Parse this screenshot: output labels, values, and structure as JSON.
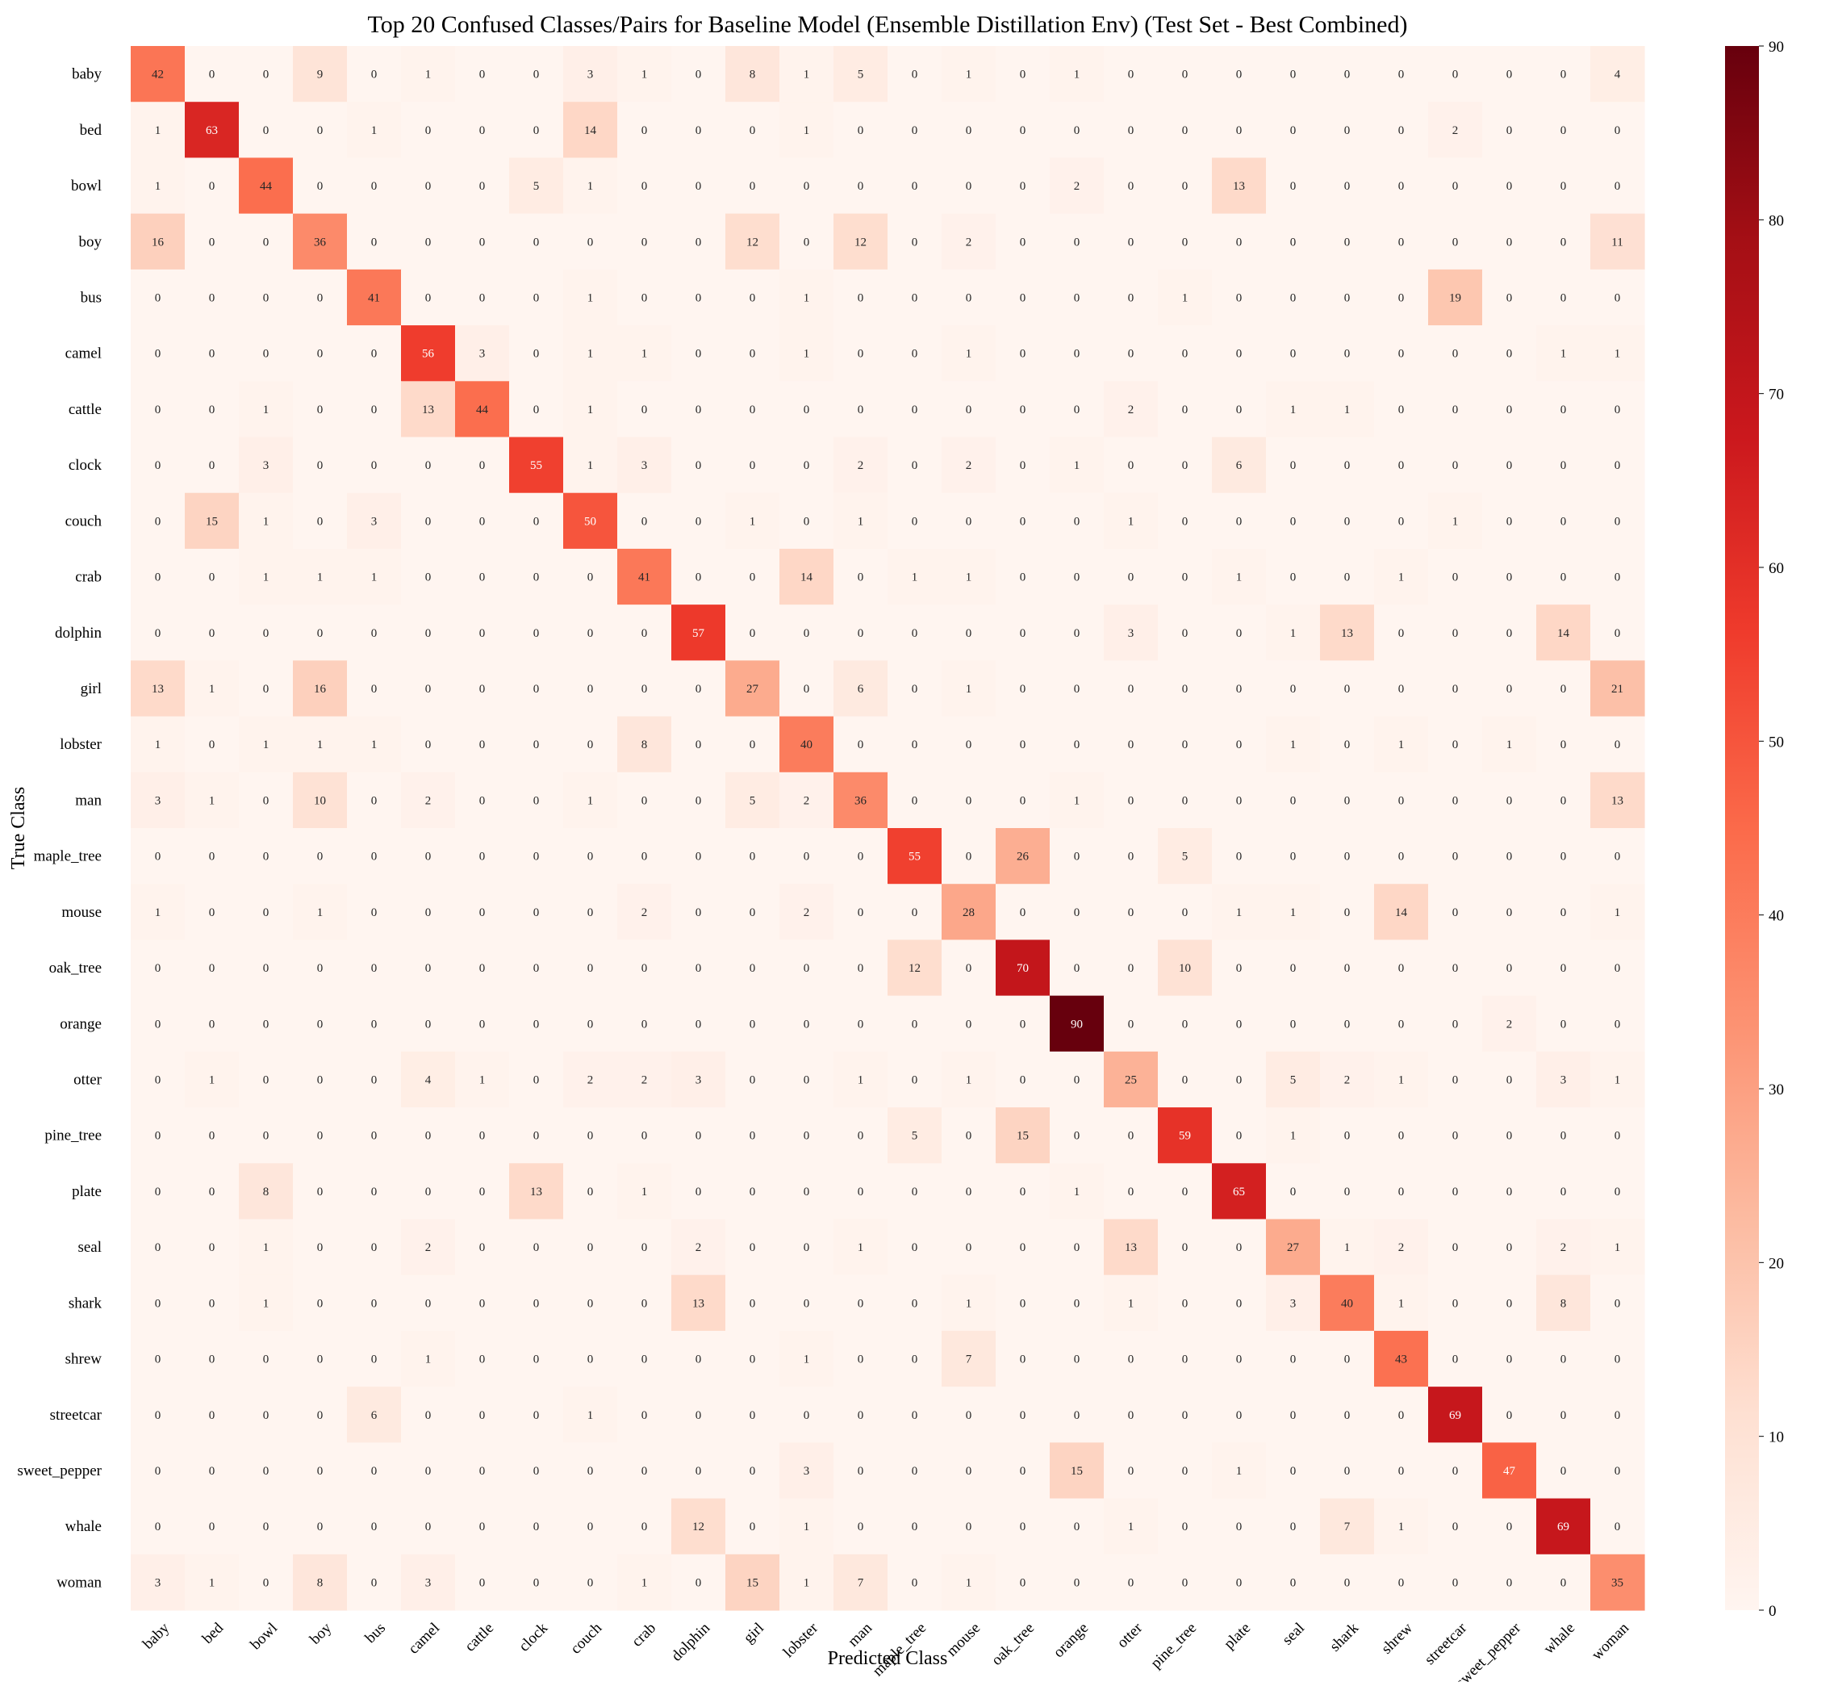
{
  "chart_data": {
    "type": "heatmap",
    "title": "Top 20 Confused Classes/Pairs for Baseline Model (Ensemble Distillation Env) (Test Set - Best Combined)",
    "xlabel": "Predicted Class",
    "ylabel": "True Class",
    "colormap": "Reds",
    "colors": [
      "#fff5f0",
      "#fee0d2",
      "#fcbba1",
      "#fc9272",
      "#fb6a4a",
      "#ef3b2c",
      "#cb181d",
      "#a50f15",
      "#67000d"
    ],
    "vmin": 0,
    "vmax": 90,
    "colorbar_ticks": [
      0,
      10,
      20,
      30,
      40,
      50,
      60,
      70,
      80,
      90
    ],
    "classes": [
      "baby",
      "bed",
      "bowl",
      "boy",
      "bus",
      "camel",
      "cattle",
      "clock",
      "couch",
      "crab",
      "dolphin",
      "girl",
      "lobster",
      "man",
      "maple_tree",
      "mouse",
      "oak_tree",
      "orange",
      "otter",
      "pine_tree",
      "plate",
      "seal",
      "shark",
      "shrew",
      "streetcar",
      "sweet_pepper",
      "whale",
      "woman"
    ],
    "matrix": [
      [
        42,
        0,
        0,
        9,
        0,
        1,
        0,
        0,
        3,
        1,
        0,
        8,
        1,
        5,
        0,
        1,
        0,
        1,
        0,
        0,
        0,
        0,
        0,
        0,
        0,
        0,
        0,
        4
      ],
      [
        1,
        63,
        0,
        0,
        1,
        0,
        0,
        0,
        14,
        0,
        0,
        0,
        1,
        0,
        0,
        0,
        0,
        0,
        0,
        0,
        0,
        0,
        0,
        0,
        2,
        0,
        0,
        0
      ],
      [
        1,
        0,
        44,
        0,
        0,
        0,
        0,
        5,
        1,
        0,
        0,
        0,
        0,
        0,
        0,
        0,
        0,
        2,
        0,
        0,
        13,
        0,
        0,
        0,
        0,
        0,
        0,
        0
      ],
      [
        16,
        0,
        0,
        36,
        0,
        0,
        0,
        0,
        0,
        0,
        0,
        12,
        0,
        12,
        0,
        2,
        0,
        0,
        0,
        0,
        0,
        0,
        0,
        0,
        0,
        0,
        0,
        11
      ],
      [
        0,
        0,
        0,
        0,
        41,
        0,
        0,
        0,
        1,
        0,
        0,
        0,
        1,
        0,
        0,
        0,
        0,
        0,
        0,
        1,
        0,
        0,
        0,
        0,
        19,
        0,
        0,
        0
      ],
      [
        0,
        0,
        0,
        0,
        0,
        56,
        3,
        0,
        1,
        1,
        0,
        0,
        1,
        0,
        0,
        1,
        0,
        0,
        0,
        0,
        0,
        0,
        0,
        0,
        0,
        0,
        1,
        1
      ],
      [
        0,
        0,
        1,
        0,
        0,
        13,
        44,
        0,
        1,
        0,
        0,
        0,
        0,
        0,
        0,
        0,
        0,
        0,
        2,
        0,
        0,
        1,
        1,
        0,
        0,
        0,
        0,
        0
      ],
      [
        0,
        0,
        3,
        0,
        0,
        0,
        0,
        55,
        1,
        3,
        0,
        0,
        0,
        2,
        0,
        2,
        0,
        1,
        0,
        0,
        6,
        0,
        0,
        0,
        0,
        0,
        0,
        0
      ],
      [
        0,
        15,
        1,
        0,
        3,
        0,
        0,
        0,
        50,
        0,
        0,
        1,
        0,
        1,
        0,
        0,
        0,
        0,
        1,
        0,
        0,
        0,
        0,
        0,
        1,
        0,
        0,
        0
      ],
      [
        0,
        0,
        1,
        1,
        1,
        0,
        0,
        0,
        0,
        41,
        0,
        0,
        14,
        0,
        1,
        1,
        0,
        0,
        0,
        0,
        1,
        0,
        0,
        1,
        0,
        0,
        0,
        0
      ],
      [
        0,
        0,
        0,
        0,
        0,
        0,
        0,
        0,
        0,
        0,
        57,
        0,
        0,
        0,
        0,
        0,
        0,
        0,
        3,
        0,
        0,
        1,
        13,
        0,
        0,
        0,
        14,
        0
      ],
      [
        13,
        1,
        0,
        16,
        0,
        0,
        0,
        0,
        0,
        0,
        0,
        27,
        0,
        6,
        0,
        1,
        0,
        0,
        0,
        0,
        0,
        0,
        0,
        0,
        0,
        0,
        0,
        21
      ],
      [
        1,
        0,
        1,
        1,
        1,
        0,
        0,
        0,
        0,
        8,
        0,
        0,
        40,
        0,
        0,
        0,
        0,
        0,
        0,
        0,
        0,
        1,
        0,
        1,
        0,
        1,
        0,
        0
      ],
      [
        3,
        1,
        0,
        10,
        0,
        2,
        0,
        0,
        1,
        0,
        0,
        5,
        2,
        36,
        0,
        0,
        0,
        1,
        0,
        0,
        0,
        0,
        0,
        0,
        0,
        0,
        0,
        13
      ],
      [
        0,
        0,
        0,
        0,
        0,
        0,
        0,
        0,
        0,
        0,
        0,
        0,
        0,
        0,
        55,
        0,
        26,
        0,
        0,
        5,
        0,
        0,
        0,
        0,
        0,
        0,
        0,
        0
      ],
      [
        1,
        0,
        0,
        1,
        0,
        0,
        0,
        0,
        0,
        2,
        0,
        0,
        2,
        0,
        0,
        28,
        0,
        0,
        0,
        0,
        1,
        1,
        0,
        14,
        0,
        0,
        0,
        1
      ],
      [
        0,
        0,
        0,
        0,
        0,
        0,
        0,
        0,
        0,
        0,
        0,
        0,
        0,
        0,
        12,
        0,
        70,
        0,
        0,
        10,
        0,
        0,
        0,
        0,
        0,
        0,
        0,
        0
      ],
      [
        0,
        0,
        0,
        0,
        0,
        0,
        0,
        0,
        0,
        0,
        0,
        0,
        0,
        0,
        0,
        0,
        0,
        90,
        0,
        0,
        0,
        0,
        0,
        0,
        0,
        2,
        0,
        0
      ],
      [
        0,
        1,
        0,
        0,
        0,
        4,
        1,
        0,
        2,
        2,
        3,
        0,
        0,
        1,
        0,
        1,
        0,
        0,
        25,
        0,
        0,
        5,
        2,
        1,
        0,
        0,
        3,
        1
      ],
      [
        0,
        0,
        0,
        0,
        0,
        0,
        0,
        0,
        0,
        0,
        0,
        0,
        0,
        0,
        5,
        0,
        15,
        0,
        0,
        59,
        0,
        1,
        0,
        0,
        0,
        0,
        0,
        0
      ],
      [
        0,
        0,
        8,
        0,
        0,
        0,
        0,
        13,
        0,
        1,
        0,
        0,
        0,
        0,
        0,
        0,
        0,
        1,
        0,
        0,
        65,
        0,
        0,
        0,
        0,
        0,
        0,
        0
      ],
      [
        0,
        0,
        1,
        0,
        0,
        2,
        0,
        0,
        0,
        0,
        2,
        0,
        0,
        1,
        0,
        0,
        0,
        0,
        13,
        0,
        0,
        27,
        1,
        2,
        0,
        0,
        2,
        1
      ],
      [
        0,
        0,
        1,
        0,
        0,
        0,
        0,
        0,
        0,
        0,
        13,
        0,
        0,
        0,
        0,
        1,
        0,
        0,
        1,
        0,
        0,
        3,
        40,
        1,
        0,
        0,
        8,
        0
      ],
      [
        0,
        0,
        0,
        0,
        0,
        1,
        0,
        0,
        0,
        0,
        0,
        0,
        1,
        0,
        0,
        7,
        0,
        0,
        0,
        0,
        0,
        0,
        0,
        43,
        0,
        0,
        0,
        0
      ],
      [
        0,
        0,
        0,
        0,
        6,
        0,
        0,
        0,
        1,
        0,
        0,
        0,
        0,
        0,
        0,
        0,
        0,
        0,
        0,
        0,
        0,
        0,
        0,
        0,
        69,
        0,
        0,
        0
      ],
      [
        0,
        0,
        0,
        0,
        0,
        0,
        0,
        0,
        0,
        0,
        0,
        0,
        3,
        0,
        0,
        0,
        0,
        15,
        0,
        0,
        1,
        0,
        0,
        0,
        0,
        47,
        0,
        0
      ],
      [
        0,
        0,
        0,
        0,
        0,
        0,
        0,
        0,
        0,
        0,
        12,
        0,
        1,
        0,
        0,
        0,
        0,
        0,
        1,
        0,
        0,
        0,
        7,
        1,
        0,
        0,
        69,
        0
      ],
      [
        3,
        1,
        0,
        8,
        0,
        3,
        0,
        0,
        0,
        1,
        0,
        15,
        1,
        7,
        0,
        1,
        0,
        0,
        0,
        0,
        0,
        0,
        0,
        0,
        0,
        0,
        0,
        35
      ]
    ]
  }
}
